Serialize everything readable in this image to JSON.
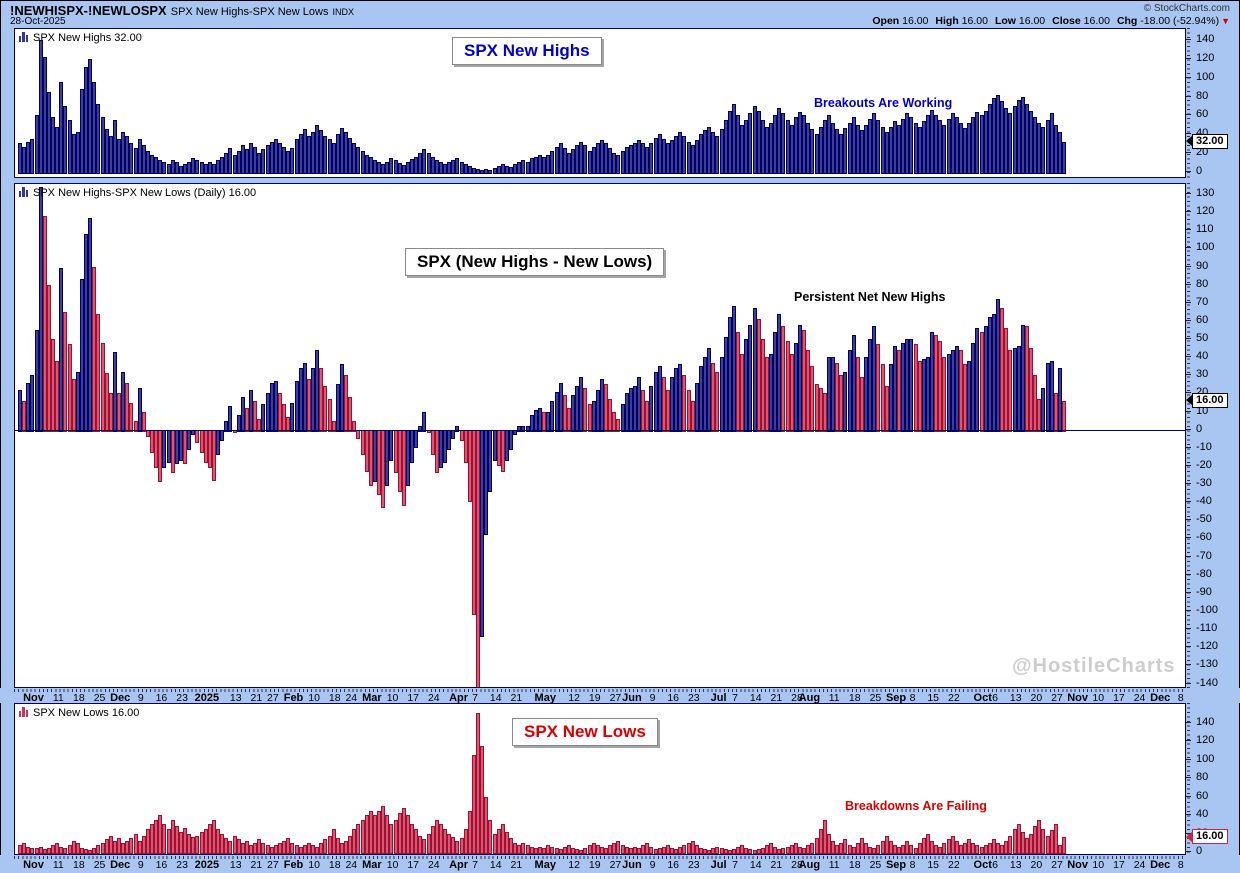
{
  "header": {
    "symbol": "!NEWHISPX-!NEWLOSPX",
    "title": "SPX New Highs-SPX New Lows",
    "exchange": "INDX",
    "date": "28-Oct-2025",
    "copyright": "© StockCharts.com",
    "quote": [
      {
        "label": "Open",
        "value": "16.00"
      },
      {
        "label": "High",
        "value": "16.00"
      },
      {
        "label": "Low",
        "value": "16.00"
      },
      {
        "label": "Close",
        "value": "16.00"
      },
      {
        "label": "Chg",
        "value": "-18.00 (-52.94%)"
      }
    ],
    "change_direction": "down",
    "change_icon": "▼"
  },
  "colors": {
    "background": "#A9C6F2",
    "bar_blue_fill": "#3E3E95",
    "bar_blue_border": "#000066",
    "bar_red_fill": "#E05570",
    "bar_red_border": "#991133",
    "annotation_blue": "#0000CC",
    "annotation_red": "#DD0000",
    "watermark_gray": "#CDCDCD"
  },
  "panels": [
    {
      "legend": "SPX New Highs 32.00",
      "marker": "32.00",
      "marker_border": "#000000",
      "yticks": [
        140,
        120,
        100,
        80,
        60,
        40,
        20,
        0
      ],
      "annotations": [
        {
          "text": "SPX New Highs",
          "style": "box-blue"
        },
        {
          "text": "Breakouts Are Working",
          "style": "plain-blue"
        }
      ]
    },
    {
      "legend": "SPX New Highs-SPX New Lows (Daily) 16.00",
      "marker": "16.00",
      "marker_border": "#000000",
      "yticks": [
        130,
        120,
        110,
        100,
        90,
        80,
        70,
        60,
        50,
        40,
        30,
        20,
        10,
        0,
        -10,
        -20,
        -30,
        -40,
        -50,
        -60,
        -70,
        -80,
        -90,
        -100,
        -110,
        -120,
        -130,
        -140
      ],
      "annotations": [
        {
          "text": "SPX (New Highs - New Lows)",
          "style": "box-black"
        },
        {
          "text": "Persistent Net New Highs",
          "style": "plain-black"
        },
        {
          "text": "@HostileCharts",
          "style": "watermark"
        }
      ]
    },
    {
      "legend": "SPX New Lows 16.00",
      "marker": "16.00",
      "marker_border": "#CC2244",
      "yticks": [
        140,
        120,
        100,
        80,
        60,
        40,
        20,
        0
      ],
      "annotations": [
        {
          "text": "SPX New Lows",
          "style": "box-red"
        },
        {
          "text": "Breakdowns Are Failing",
          "style": "plain-red"
        }
      ]
    }
  ],
  "x_axis": {
    "ticks": [
      {
        "label": "Nov",
        "i": 4,
        "bold": true
      },
      {
        "label": "11",
        "i": 10,
        "bold": false
      },
      {
        "label": "18",
        "i": 15,
        "bold": false
      },
      {
        "label": "25",
        "i": 20,
        "bold": false
      },
      {
        "label": "Dec",
        "i": 25,
        "bold": true
      },
      {
        "label": "9",
        "i": 30,
        "bold": false
      },
      {
        "label": "16",
        "i": 35,
        "bold": false
      },
      {
        "label": "23",
        "i": 40,
        "bold": false
      },
      {
        "label": "2025",
        "i": 46,
        "bold": true
      },
      {
        "label": "13",
        "i": 53,
        "bold": false
      },
      {
        "label": "21",
        "i": 58,
        "bold": false
      },
      {
        "label": "27",
        "i": 62,
        "bold": false
      },
      {
        "label": "Feb",
        "i": 67,
        "bold": true
      },
      {
        "label": "10",
        "i": 72,
        "bold": false
      },
      {
        "label": "18",
        "i": 77,
        "bold": false
      },
      {
        "label": "24",
        "i": 81,
        "bold": false
      },
      {
        "label": "Mar",
        "i": 86,
        "bold": true
      },
      {
        "label": "10",
        "i": 91,
        "bold": false
      },
      {
        "label": "17",
        "i": 96,
        "bold": false
      },
      {
        "label": "24",
        "i": 101,
        "bold": false
      },
      {
        "label": "Apr",
        "i": 107,
        "bold": true
      },
      {
        "label": "7",
        "i": 111,
        "bold": false
      },
      {
        "label": "14",
        "i": 116,
        "bold": false
      },
      {
        "label": "21",
        "i": 121,
        "bold": false
      },
      {
        "label": "May",
        "i": 128,
        "bold": true
      },
      {
        "label": "12",
        "i": 135,
        "bold": false
      },
      {
        "label": "19",
        "i": 140,
        "bold": false
      },
      {
        "label": "27",
        "i": 145,
        "bold": false
      },
      {
        "label": "Jun",
        "i": 149,
        "bold": true
      },
      {
        "label": "9",
        "i": 154,
        "bold": false
      },
      {
        "label": "16",
        "i": 159,
        "bold": false
      },
      {
        "label": "23",
        "i": 164,
        "bold": false
      },
      {
        "label": "Jul",
        "i": 170,
        "bold": true
      },
      {
        "label": "7",
        "i": 174,
        "bold": false
      },
      {
        "label": "14",
        "i": 179,
        "bold": false
      },
      {
        "label": "21",
        "i": 184,
        "bold": false
      },
      {
        "label": "28",
        "i": 189,
        "bold": false
      },
      {
        "label": "Aug",
        "i": 192,
        "bold": true
      },
      {
        "label": "11",
        "i": 198,
        "bold": false
      },
      {
        "label": "18",
        "i": 203,
        "bold": false
      },
      {
        "label": "25",
        "i": 208,
        "bold": false
      },
      {
        "label": "Sep",
        "i": 213,
        "bold": true
      },
      {
        "label": "8",
        "i": 217,
        "bold": false
      },
      {
        "label": "15",
        "i": 222,
        "bold": false
      },
      {
        "label": "22",
        "i": 227,
        "bold": false
      },
      {
        "label": "Oct",
        "i": 234,
        "bold": true
      },
      {
        "label": "6",
        "i": 237,
        "bold": false
      },
      {
        "label": "13",
        "i": 242,
        "bold": false
      },
      {
        "label": "20",
        "i": 247,
        "bold": false
      },
      {
        "label": "27",
        "i": 252,
        "bold": false
      },
      {
        "label": "Nov",
        "i": 257,
        "bold": true
      },
      {
        "label": "10",
        "i": 262,
        "bold": false
      },
      {
        "label": "17",
        "i": 267,
        "bold": false
      },
      {
        "label": "24",
        "i": 272,
        "bold": false
      },
      {
        "label": "Dec",
        "i": 277,
        "bold": true
      },
      {
        "label": "8",
        "i": 282,
        "bold": false
      }
    ]
  },
  "chart_data": [
    {
      "type": "bar",
      "title": "SPX New Highs",
      "xlabel": "",
      "ylabel": "",
      "ylim": [
        -8,
        152
      ],
      "yticks": [
        0,
        20,
        40,
        60,
        80,
        100,
        120,
        140
      ],
      "last_value": 32.0,
      "bar_color": "blue",
      "values": [
        30,
        26,
        32,
        35,
        60,
        140,
        122,
        85,
        58,
        48,
        95,
        70,
        55,
        40,
        42,
        88,
        112,
        120,
        95,
        72,
        58,
        45,
        38,
        55,
        35,
        42,
        38,
        30,
        25,
        35,
        28,
        22,
        18,
        15,
        12,
        10,
        8,
        12,
        10,
        6,
        8,
        10,
        14,
        12,
        10,
        8,
        10,
        8,
        12,
        15,
        20,
        25,
        18,
        22,
        28,
        24,
        30,
        26,
        20,
        24,
        28,
        32,
        35,
        30,
        26,
        22,
        25,
        35,
        40,
        45,
        38,
        42,
        50,
        44,
        38,
        35,
        30,
        40,
        46,
        42,
        36,
        30,
        26,
        22,
        18,
        15,
        12,
        10,
        8,
        10,
        14,
        12,
        9,
        7,
        10,
        13,
        16,
        20,
        24,
        20,
        15,
        12,
        10,
        8,
        10,
        12,
        14,
        10,
        8,
        6,
        4,
        3,
        2,
        3,
        2,
        4,
        6,
        8,
        6,
        5,
        8,
        10,
        12,
        10,
        14,
        16,
        18,
        15,
        18,
        22,
        26,
        30,
        25,
        20,
        24,
        28,
        32,
        28,
        22,
        26,
        30,
        34,
        30,
        25,
        20,
        18,
        22,
        26,
        28,
        30,
        34,
        30,
        26,
        30,
        36,
        40,
        35,
        30,
        34,
        38,
        42,
        38,
        32,
        28,
        34,
        40,
        44,
        48,
        42,
        38,
        45,
        55,
        65,
        72,
        60,
        50,
        55,
        62,
        70,
        65,
        55,
        48,
        52,
        60,
        68,
        62,
        55,
        50,
        58,
        64,
        60,
        52,
        45,
        40,
        48,
        55,
        60,
        52,
        45,
        40,
        46,
        52,
        58,
        50,
        44,
        50,
        56,
        62,
        55,
        48,
        42,
        48,
        54,
        50,
        56,
        62,
        58,
        52,
        48,
        54,
        60,
        66,
        60,
        55,
        50,
        56,
        62,
        58,
        52,
        46,
        52,
        58,
        64,
        60,
        65,
        72,
        78,
        82,
        75,
        68,
        62,
        70,
        76,
        80,
        72,
        65,
        58,
        52,
        48,
        55,
        62,
        50,
        42,
        32
      ]
    },
    {
      "type": "bar",
      "title": "SPX (New Highs - New Lows)",
      "xlabel": "",
      "ylabel": "",
      "ylim": [
        -143,
        135.5
      ],
      "yticks": [
        -140,
        -130,
        -120,
        -110,
        -100,
        -90,
        -80,
        -70,
        -60,
        -50,
        -40,
        -30,
        -20,
        -10,
        0,
        10,
        20,
        30,
        40,
        50,
        60,
        70,
        80,
        90,
        100,
        110,
        120,
        130
      ],
      "derived_from": "new_highs minus new_lows (computed from panels 1 and 3 series)",
      "color_rule": "blue bar if value >= previous bar value, red bar if lower",
      "last_value": 16.0,
      "prev_value": 34.0
    },
    {
      "type": "bar",
      "title": "SPX New Lows",
      "xlabel": "",
      "ylabel": "",
      "ylim": [
        -4,
        160
      ],
      "yticks": [
        0,
        20,
        40,
        60,
        80,
        100,
        120,
        140
      ],
      "last_value": 16.0,
      "bar_color": "red",
      "values": [
        8,
        10,
        6,
        5,
        5,
        6,
        4,
        5,
        8,
        10,
        6,
        5,
        8,
        12,
        10,
        5,
        4,
        3,
        5,
        8,
        10,
        14,
        18,
        12,
        15,
        10,
        12,
        15,
        20,
        12,
        18,
        25,
        30,
        35,
        40,
        30,
        25,
        35,
        28,
        22,
        26,
        20,
        16,
        18,
        22,
        25,
        30,
        35,
        25,
        20,
        15,
        12,
        18,
        14,
        10,
        12,
        8,
        10,
        14,
        10,
        8,
        6,
        8,
        10,
        12,
        15,
        10,
        8,
        6,
        8,
        10,
        8,
        6,
        10,
        14,
        18,
        25,
        15,
        10,
        12,
        18,
        25,
        30,
        35,
        40,
        45,
        40,
        45,
        50,
        40,
        30,
        35,
        42,
        48,
        40,
        30,
        25,
        18,
        14,
        20,
        28,
        35,
        30,
        25,
        20,
        16,
        12,
        15,
        25,
        45,
        105,
        150,
        115,
        60,
        35,
        20,
        25,
        30,
        22,
        15,
        10,
        8,
        10,
        8,
        6,
        5,
        6,
        5,
        8,
        6,
        5,
        4,
        6,
        8,
        5,
        4,
        3,
        5,
        8,
        10,
        8,
        6,
        5,
        8,
        10,
        12,
        8,
        6,
        5,
        6,
        5,
        8,
        10,
        6,
        4,
        5,
        6,
        8,
        5,
        4,
        6,
        8,
        10,
        12,
        8,
        5,
        4,
        3,
        5,
        6,
        5,
        4,
        3,
        4,
        6,
        8,
        5,
        4,
        3,
        4,
        5,
        8,
        10,
        6,
        4,
        5,
        6,
        8,
        10,
        6,
        5,
        8,
        10,
        15,
        25,
        35,
        20,
        12,
        8,
        10,
        14,
        8,
        6,
        10,
        15,
        10,
        6,
        5,
        8,
        12,
        18,
        12,
        8,
        6,
        8,
        12,
        8,
        5,
        10,
        15,
        20,
        12,
        8,
        6,
        10,
        14,
        18,
        12,
        8,
        10,
        14,
        10,
        8,
        6,
        8,
        10,
        14,
        10,
        8,
        12,
        18,
        25,
        30,
        22,
        15,
        20,
        28,
        35,
        25,
        18,
        24,
        30,
        8,
        16
      ]
    }
  ]
}
